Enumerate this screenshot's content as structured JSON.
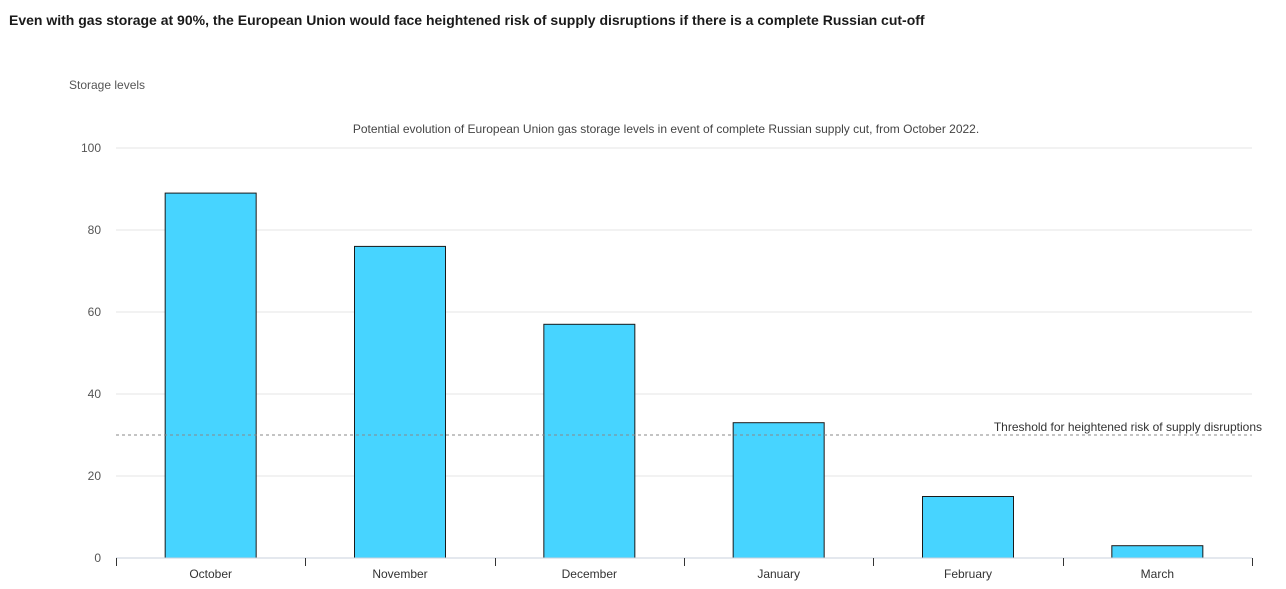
{
  "header": {
    "title": "Even with gas storage at 90%, the European Union would face heightened risk of supply disruptions if there is a complete Russian cut-off"
  },
  "chart_data": {
    "type": "bar",
    "title": "Even with gas storage at 90%, the European Union would face heightened risk of supply disruptions if there is a complete Russian cut-off",
    "subtitle": "Potential evolution of European Union gas storage levels in event of complete Russian supply cut, from October 2022.",
    "ylabel": "Storage levels",
    "xlabel": "",
    "categories": [
      "October",
      "November",
      "December",
      "January",
      "February",
      "March"
    ],
    "values": [
      89,
      76,
      57,
      33,
      15,
      3
    ],
    "ylim": [
      0,
      100
    ],
    "yticks": [
      0,
      20,
      40,
      60,
      80,
      100
    ],
    "grid": true,
    "bar_color": "#47d4ff",
    "bar_edge_color": "#1a1a1a",
    "threshold": {
      "value": 30,
      "label": "Threshold for heightened risk of supply disruptions"
    }
  }
}
